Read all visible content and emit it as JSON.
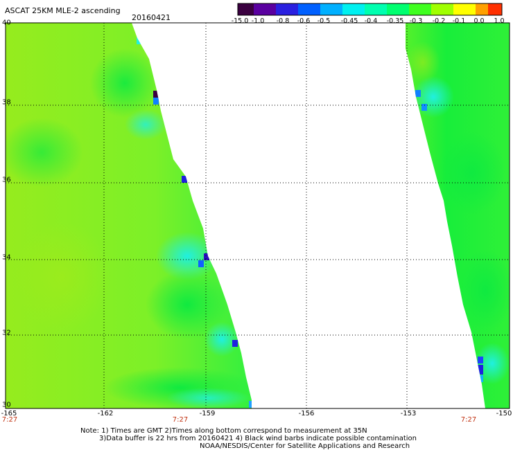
{
  "header": {
    "title": "ASCAT 25KM MLE-2 ascending",
    "date": "20160421"
  },
  "colorbar": {
    "labels": [
      "-15.0",
      "-1.0",
      "-0.8",
      "-0.6",
      "-0.5",
      "-0.45",
      "-0.4",
      "-0.35",
      "-0.3",
      "-0.2",
      "-0.1",
      "0.0",
      "1.0"
    ],
    "colors": [
      "#3a0040",
      "#5a00a0",
      "#2a20e0",
      "#0060ff",
      "#00b0ff",
      "#00f0f0",
      "#00ffb0",
      "#00ff70",
      "#40ff20",
      "#a0ff00",
      "#ffff00",
      "#ffa000",
      "#ff3000"
    ]
  },
  "axes": {
    "lat_labels": [
      "40",
      "38",
      "36",
      "34",
      "32",
      "30"
    ],
    "lon_labels": [
      "-165",
      "-162",
      "-159",
      "-156",
      "-153",
      "-150"
    ]
  },
  "times": [
    "7:27",
    "7:27",
    "7:27"
  ],
  "notes": [
    "Note: 1) Times are GMT 2)Times along bottom correspond to measurement at 35N",
    "3)Data buffer is 22 hrs from 20160421 4) Black wind barbs indicate possible contamination",
    "NOAA/NESDIS/Center for Satellite Applications and Research"
  ],
  "map_colors": {
    "yellowgreen": "#88ee20",
    "green": "#20f040",
    "cyan": "#20f0c0",
    "blue": "#1040ff",
    "navy": "#4010a0"
  }
}
